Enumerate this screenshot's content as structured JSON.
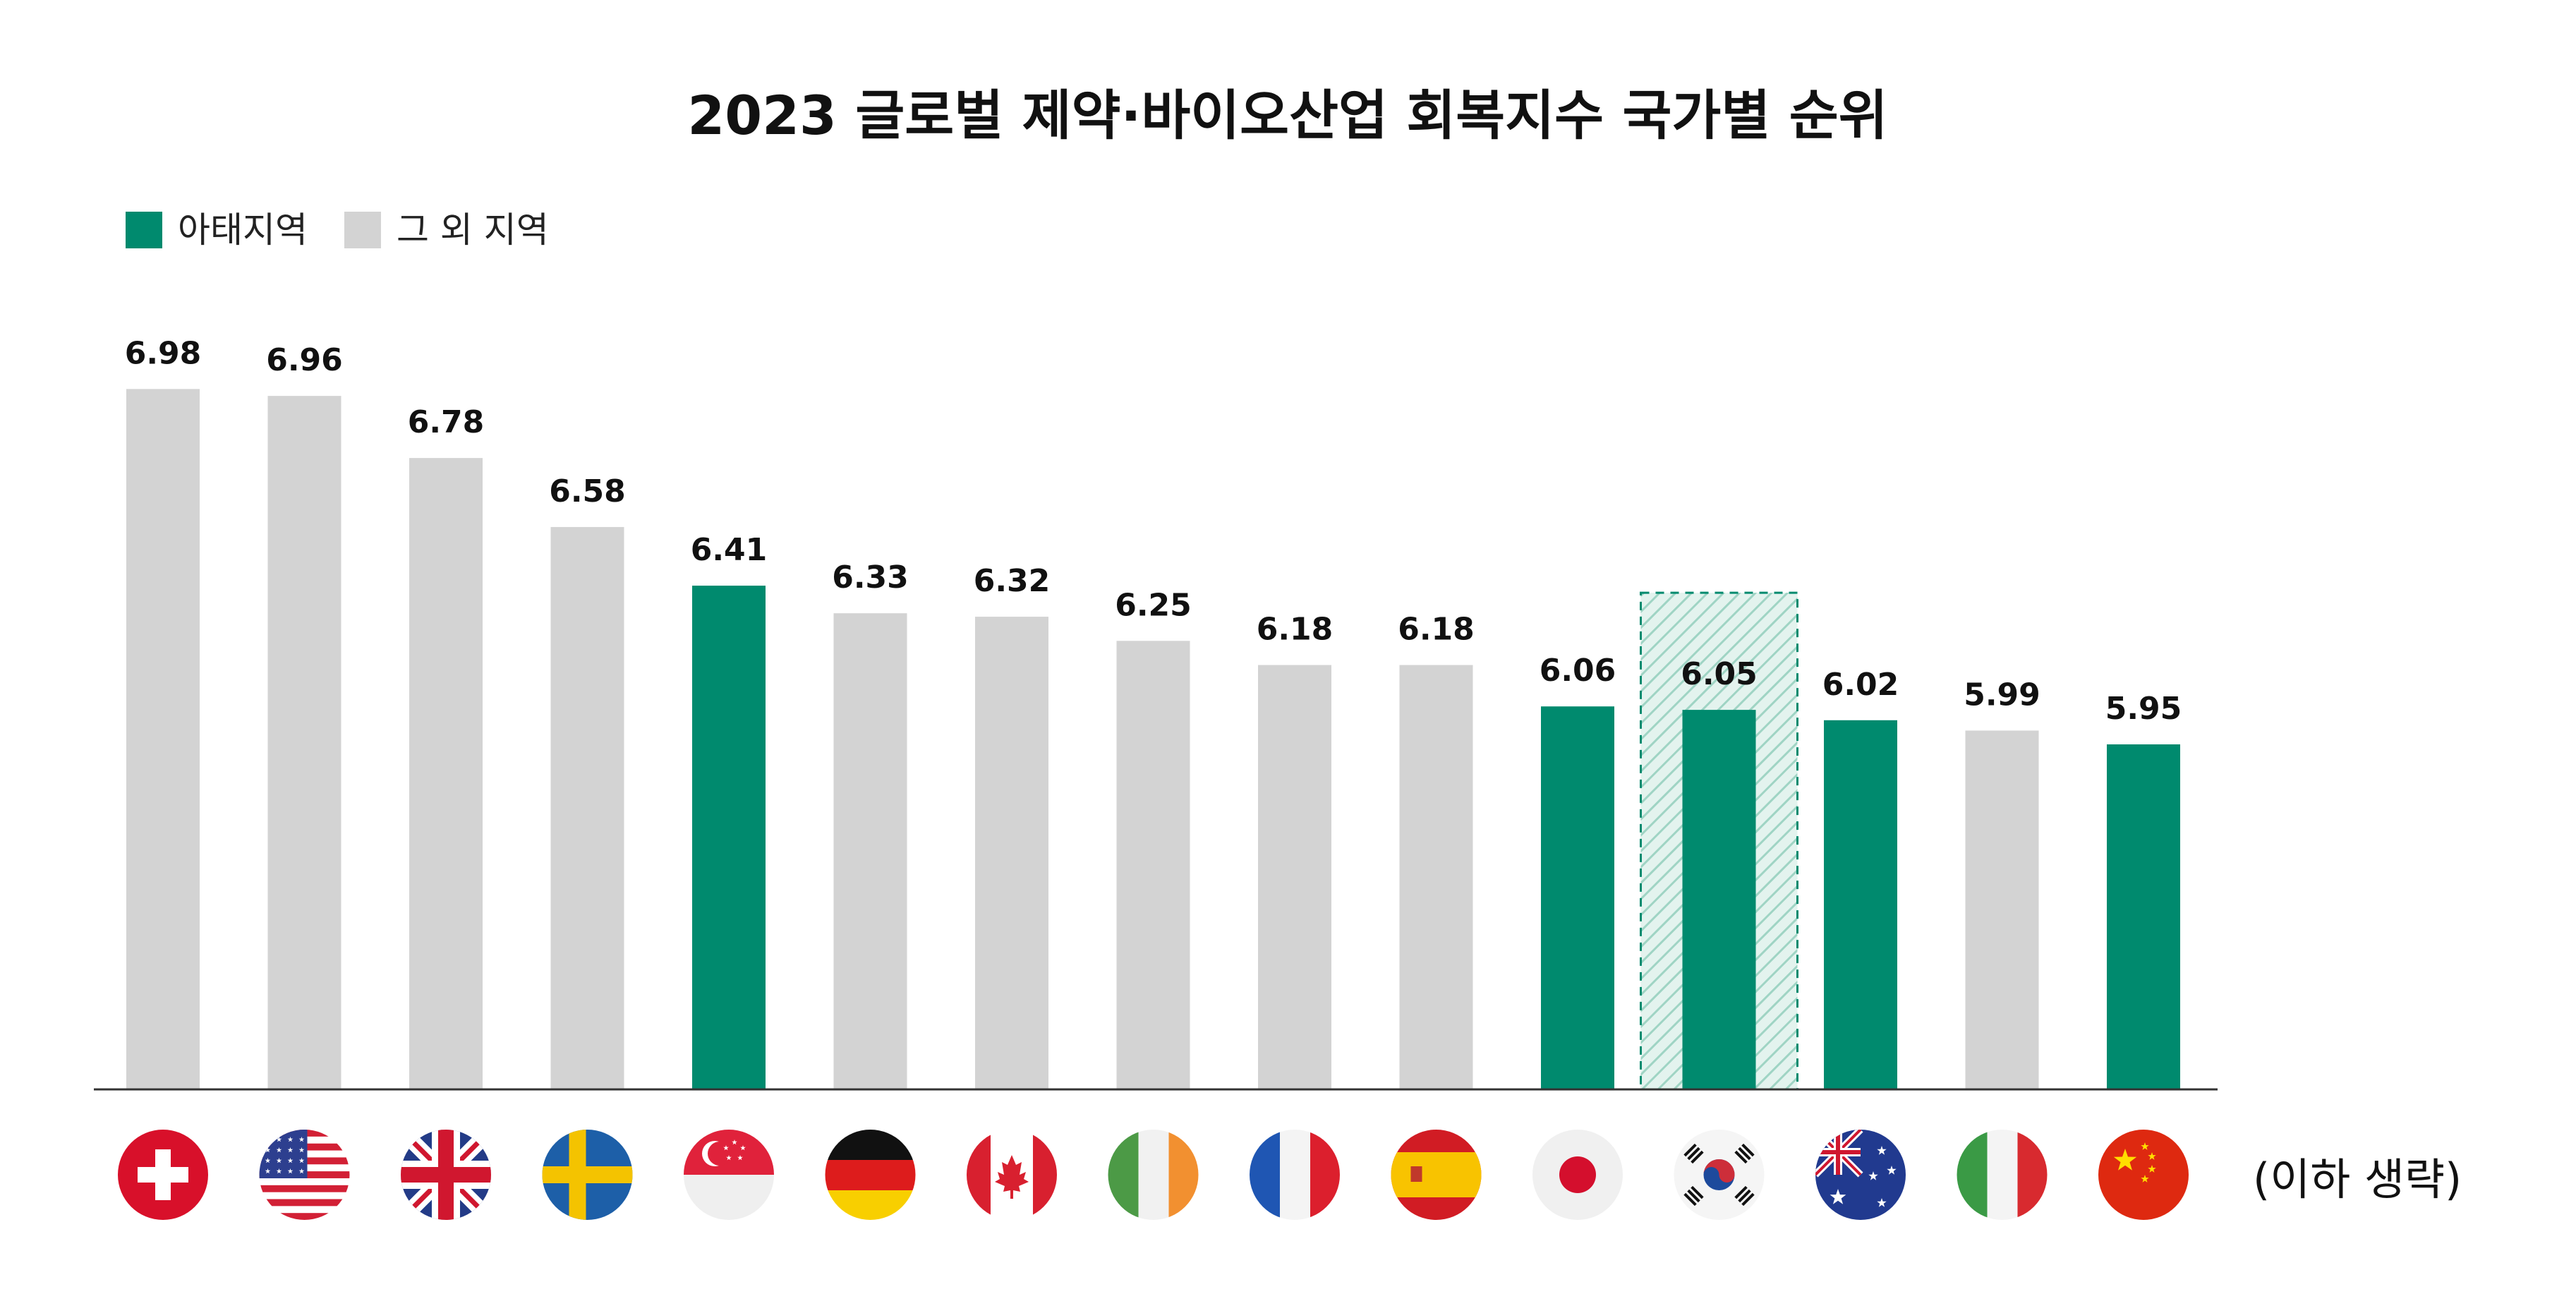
{
  "chart_data": {
    "type": "bar",
    "title": "2023 글로벌 제약·바이오산업 회복지수 국가별 순위",
    "legend": [
      {
        "label": "아태지역",
        "color": "#008a6e"
      },
      {
        "label": "그 외 지역",
        "color": "#d3d3d3"
      }
    ],
    "legend_position": "top-left",
    "categories": [
      "switzerland-flag",
      "usa-flag",
      "uk-flag",
      "sweden-flag",
      "singapore-flag",
      "germany-flag",
      "canada-flag",
      "ireland-flag",
      "france-flag",
      "spain-flag",
      "japan-flag",
      "korea-flag",
      "australia-flag",
      "italy-flag",
      "china-flag"
    ],
    "values": [
      6.98,
      6.96,
      6.78,
      6.58,
      6.41,
      6.33,
      6.32,
      6.25,
      6.18,
      6.18,
      6.06,
      6.05,
      6.02,
      5.99,
      5.95
    ],
    "value_labels": [
      "6.98",
      "6.96",
      "6.78",
      "6.58",
      "6.41",
      "6.33",
      "6.32",
      "6.25",
      "6.18",
      "6.18",
      "6.06",
      "6.05",
      "6.02",
      "5.99",
      "5.95"
    ],
    "region": [
      "other",
      "other",
      "other",
      "other",
      "apac",
      "other",
      "other",
      "other",
      "other",
      "other",
      "apac",
      "apac",
      "apac",
      "other",
      "apac"
    ],
    "highlighted_index": 11,
    "note": "(이하 생략)",
    "grid": false,
    "x_axis_labels": "flags"
  }
}
